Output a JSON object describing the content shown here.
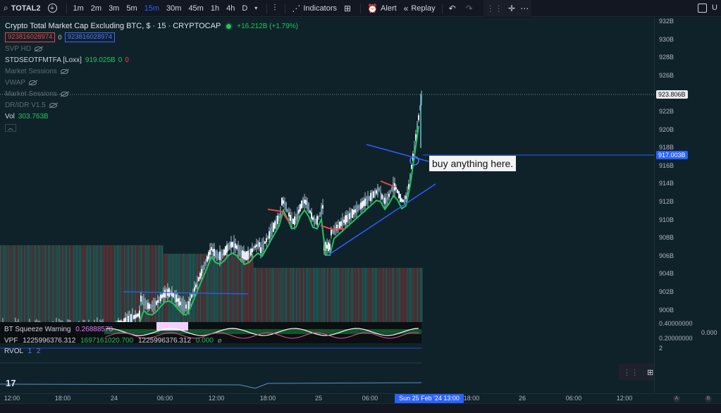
{
  "toolbar": {
    "symbol": "TOTAL2",
    "intervals": [
      "1m",
      "2m",
      "3m",
      "5m",
      "15m",
      "30m",
      "45m",
      "1h",
      "4h",
      "D"
    ],
    "active_interval": "15m",
    "indicators_label": "Indicators",
    "alert_label": "Alert",
    "replay_label": "Replay",
    "right_letter": "U"
  },
  "legend": {
    "title": "Crypto Total Market Cap Excluding BTC, $ · 15 · CRYPTOCAP",
    "change": "+16.212B (+1.79%)",
    "bid": "923816028974",
    "spread": "0",
    "ask": "923816028974",
    "svp": "SVP HD",
    "stdse": "STDSEOTFMTFA [Loxx]",
    "stdse_value": "919.025B",
    "stdse_a": "0",
    "stdse_b": "0",
    "market_sessions_1": "Market Sessions",
    "vwap": "VWAP",
    "market_sessions_2": "Market Sessions",
    "dr_idr": "DR/IDR V1.5",
    "vol_label": "Vol",
    "vol_value": "303.763B",
    "collapse_icon": "chevron-up-icon"
  },
  "price_axis": {
    "ticks": [
      "932B",
      "930B",
      "928B",
      "926B",
      "924B",
      "922B",
      "920B",
      "918B",
      "916B",
      "914B",
      "912B",
      "910B",
      "908B",
      "906B",
      "904B",
      "902B",
      "900B"
    ],
    "current_price": "923.806B",
    "line_price": "917.003B",
    "sub_ticks": [
      "0.40000000",
      "0.20000000",
      "2"
    ],
    "squeeze_zero": "0.000"
  },
  "time_axis": {
    "ticks": [
      "12:00",
      "18:00",
      "24",
      "06:00",
      "12:00",
      "18:00",
      "25",
      "06:00",
      "18:00",
      "26",
      "06:00",
      "12:00"
    ],
    "cursor_label": "Sun 25 Feb '24   13:00",
    "corner_a": "A",
    "corner_b": "B"
  },
  "annotation": {
    "text": "buy anything here."
  },
  "indicators": {
    "squeeze_label": "BT Squeeze Warning",
    "squeeze_value": "0.26888578",
    "vpf_label": "VPF",
    "vpf_v1": "1225996376.312",
    "vpf_v2": "1697161020.700",
    "vpf_v3": "1225996376.312",
    "vpf_v4": "0.000",
    "rvol_label": "RVOL",
    "rvol_a": "1",
    "rvol_b": "2"
  },
  "drawbar": {
    "size_value": "24"
  },
  "colors": {
    "accent": "#2962ff",
    "up": "#22c55e",
    "down": "#ef4444",
    "trendline": "#2f5fff"
  }
}
